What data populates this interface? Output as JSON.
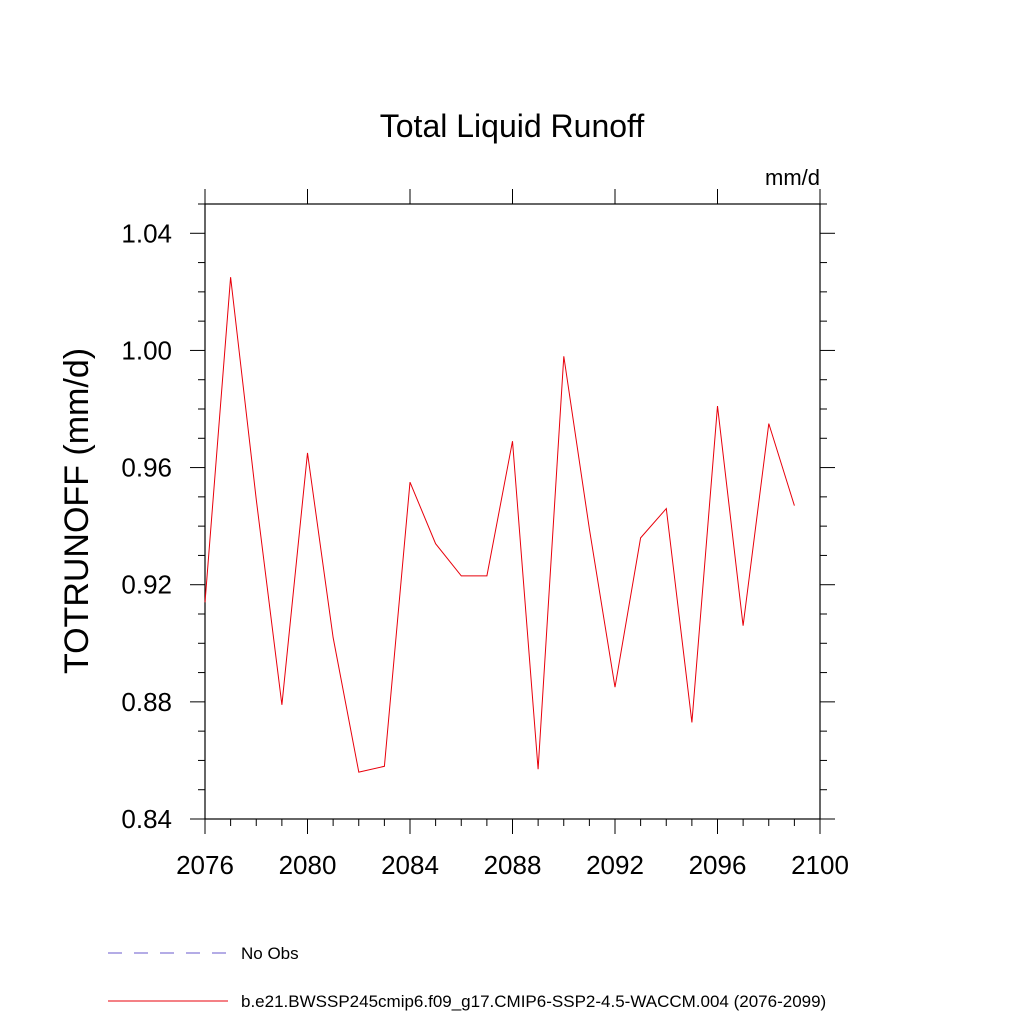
{
  "chart_data": {
    "type": "line",
    "title": "Total Liquid Runoff",
    "units": "mm/d",
    "ylabel": "TOTRUNOFF  (mm/d)",
    "xlabel": "",
    "xlim": [
      2076,
      2100
    ],
    "ylim": [
      0.84,
      1.05
    ],
    "xticks": [
      2076,
      2080,
      2084,
      2088,
      2092,
      2096,
      2100
    ],
    "yticks": [
      0.84,
      0.88,
      0.92,
      0.96,
      1.0,
      1.04
    ],
    "xtick_labels": [
      "2076",
      "2080",
      "2084",
      "2088",
      "2092",
      "2096",
      "2100"
    ],
    "ytick_labels": [
      "0.84",
      "0.88",
      "0.92",
      "0.96",
      "1.00",
      "1.04"
    ],
    "grid": false,
    "legend_position": "bottom-left",
    "series": [
      {
        "name": "b.e21.BWSSP245cmip6.f09_g17.CMIP6-SSP2-4.5-WACCM.004 (2076-2099)",
        "color": "#e8000b",
        "style": "solid",
        "x": [
          2076,
          2077,
          2078,
          2079,
          2080,
          2081,
          2082,
          2083,
          2084,
          2085,
          2086,
          2087,
          2088,
          2089,
          2090,
          2091,
          2092,
          2093,
          2094,
          2095,
          2096,
          2097,
          2098,
          2099
        ],
        "values": [
          0.914,
          1.025,
          0.949,
          0.879,
          0.965,
          0.902,
          0.856,
          0.858,
          0.955,
          0.934,
          0.923,
          0.923,
          0.969,
          0.857,
          0.998,
          0.939,
          0.885,
          0.936,
          0.946,
          0.873,
          0.981,
          0.906,
          0.975,
          0.947
        ]
      }
    ],
    "legend": [
      {
        "label": "No Obs",
        "color": "#6a5acd",
        "style": "dashed"
      },
      {
        "label": "b.e21.BWSSP245cmip6.f09_g17.CMIP6-SSP2-4.5-WACCM.004 (2076-2099)",
        "color": "#e8000b",
        "style": "solid"
      }
    ]
  }
}
